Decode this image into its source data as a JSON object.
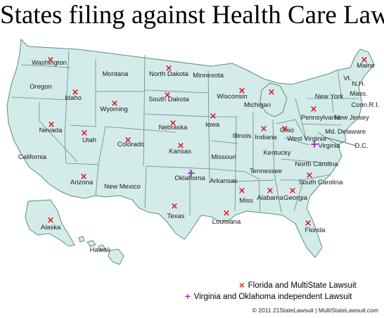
{
  "title": "States filing against Health Care Law",
  "colors": {
    "land": "#d4ece9",
    "border": "#5f8a87",
    "florida_marker": "#e4141b",
    "virginia_marker": "#b21dcc"
  },
  "states": [
    {
      "label": "Washington",
      "marker": "florida"
    },
    {
      "label": "Oregon",
      "marker": ""
    },
    {
      "label": "California",
      "marker": ""
    },
    {
      "label": "Idaho",
      "marker": "florida"
    },
    {
      "label": "Nevada",
      "marker": "florida"
    },
    {
      "label": "Montana",
      "marker": ""
    },
    {
      "label": "Wyoming",
      "marker": "florida"
    },
    {
      "label": "Utah",
      "marker": "florida"
    },
    {
      "label": "Arizona",
      "marker": "florida"
    },
    {
      "label": "Colorado",
      "marker": "florida"
    },
    {
      "label": "New Mexico",
      "marker": ""
    },
    {
      "label": "North Dakota",
      "marker": "florida"
    },
    {
      "label": "South Dakota",
      "marker": "florida"
    },
    {
      "label": "Nebraska",
      "marker": "florida"
    },
    {
      "label": "Kansas",
      "marker": "florida"
    },
    {
      "label": "Oklahoma",
      "marker": "virginia"
    },
    {
      "label": "Texas",
      "marker": "florida"
    },
    {
      "label": "Minnesota",
      "marker": ""
    },
    {
      "label": "Iowa",
      "marker": "florida"
    },
    {
      "label": "Missouri",
      "marker": ""
    },
    {
      "label": "Arkansas",
      "marker": ""
    },
    {
      "label": "Louisiana",
      "marker": "florida"
    },
    {
      "label": "Wisconsin",
      "marker": "florida"
    },
    {
      "label": "Illinois",
      "marker": ""
    },
    {
      "label": "Michigan",
      "marker": "florida"
    },
    {
      "label": "Indiana",
      "marker": "florida"
    },
    {
      "label": "Ohio",
      "marker": "florida"
    },
    {
      "label": "Kentucky",
      "marker": ""
    },
    {
      "label": "Tennessee",
      "marker": ""
    },
    {
      "label": "Miss",
      "marker": "florida"
    },
    {
      "label": "Alabama",
      "marker": "florida"
    },
    {
      "label": "Georgia",
      "marker": "florida"
    },
    {
      "label": "Florida",
      "marker": "florida"
    },
    {
      "label": "South Carolina",
      "marker": "florida"
    },
    {
      "label": "North Carolina",
      "marker": ""
    },
    {
      "label": "Virginia",
      "marker": "virginia"
    },
    {
      "label": "West Virginia",
      "marker": ""
    },
    {
      "label": "Pennsylvania",
      "marker": "florida"
    },
    {
      "label": "New York",
      "marker": ""
    },
    {
      "label": "Vt.",
      "marker": ""
    },
    {
      "label": "N.H.",
      "marker": ""
    },
    {
      "label": "Maine",
      "marker": "florida"
    },
    {
      "label": "Mass.",
      "marker": ""
    },
    {
      "label": "Conn.",
      "marker": ""
    },
    {
      "label": "R.I.",
      "marker": ""
    },
    {
      "label": "New Jersey",
      "marker": ""
    },
    {
      "label": "Delaware",
      "marker": ""
    },
    {
      "label": "Md.",
      "marker": ""
    },
    {
      "label": "D.C.",
      "marker": ""
    },
    {
      "label": "Alaska",
      "marker": "florida"
    },
    {
      "label": "Hawaii",
      "marker": ""
    }
  ],
  "legend": {
    "florida_symbol": "×",
    "florida_text": "Florida and MultiState Lawsuit",
    "virginia_symbol": "+",
    "virginia_text": "Virginia and Oklahoma independent Lawsuit"
  },
  "credit": "© 2011 21StateLawsuit | MultiStateLawsuit.com"
}
